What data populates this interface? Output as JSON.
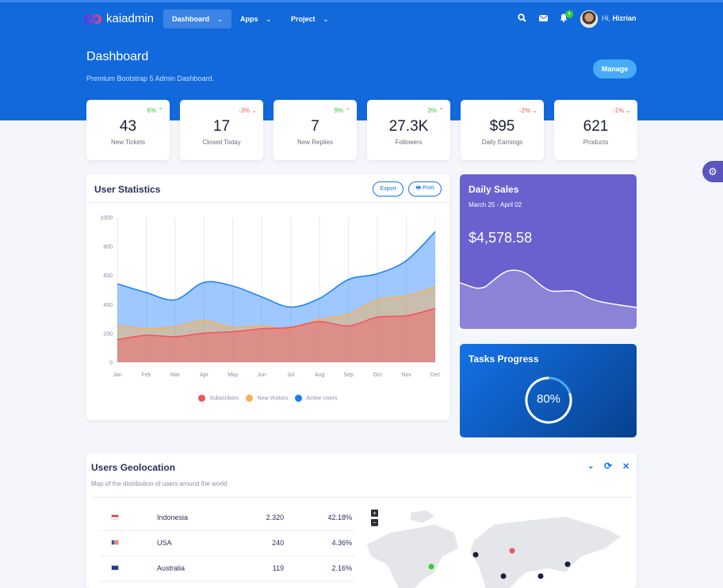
{
  "brand": {
    "name": "kaiadmin"
  },
  "nav": [
    {
      "label": "Dashboard",
      "active": true
    },
    {
      "label": "Apps"
    },
    {
      "label": "Project"
    }
  ],
  "topbar": {
    "icons": [
      "search-icon",
      "envelope-icon",
      "bell-icon"
    ],
    "notification_count": "4",
    "greeting": "Hi,",
    "user": "Hizrian"
  },
  "page": {
    "title": "Dashboard",
    "subtitle": "Premium Bootstrap 5 Admin Dashboard.",
    "manage_label": "Manage"
  },
  "stats": [
    {
      "value": "43",
      "label": "New Tickets",
      "change": "6%",
      "trend": "up"
    },
    {
      "value": "17",
      "label": "Closed Today",
      "change": "-3%",
      "trend": "down"
    },
    {
      "value": "7",
      "label": "New Replies",
      "change": "9%",
      "trend": "up"
    },
    {
      "value": "27.3K",
      "label": "Followers",
      "change": "3%",
      "trend": "up"
    },
    {
      "value": "$95",
      "label": "Daily Earnings",
      "change": "-2%",
      "trend": "down"
    },
    {
      "value": "621",
      "label": "Products",
      "change": "-1%",
      "trend": "down"
    }
  ],
  "user_stats": {
    "title": "User Statistics",
    "export_label": "Export",
    "print_label": "Print"
  },
  "chart_data": {
    "type": "area",
    "categories": [
      "Jan",
      "Feb",
      "Mar",
      "Apr",
      "May",
      "Jun",
      "Jul",
      "Aug",
      "Sep",
      "Oct",
      "Nov",
      "Dec"
    ],
    "ylim": [
      0,
      1000
    ],
    "yticks": [
      "0",
      "200",
      "400",
      "600",
      "800",
      "1000"
    ],
    "grid": "vertical",
    "legend_position": "bottom",
    "series": [
      {
        "name": "Subscribers",
        "color": "#f3545d",
        "values": [
          155,
          185,
          175,
          200,
          210,
          230,
          240,
          280,
          250,
          310,
          320,
          370
        ]
      },
      {
        "name": "New Visitors",
        "color": "#fdaf4b",
        "values": [
          255,
          230,
          245,
          285,
          240,
          250,
          230,
          295,
          330,
          430,
          455,
          520
        ]
      },
      {
        "name": "Active Users",
        "color": "#177dff",
        "values": [
          540,
          480,
          430,
          550,
          525,
          450,
          380,
          440,
          570,
          610,
          700,
          900
        ]
      }
    ]
  },
  "daily_sales": {
    "title": "Daily Sales",
    "range": "March 25 - April 02",
    "amount": "$4,578.58"
  },
  "tasks": {
    "title": "Tasks Progress",
    "percent": 80,
    "label": "80%"
  },
  "geo": {
    "title": "Users Geolocation",
    "subtitle": "Map of the distribution of users around the world",
    "rows": [
      {
        "flag": "indonesia-flag",
        "country": "Indonesia",
        "users": "2.320",
        "percent": "42.18%"
      },
      {
        "flag": "usa-flag",
        "country": "USA",
        "users": "240",
        "percent": "4.36%"
      },
      {
        "flag": "australia-flag",
        "country": "Australia",
        "users": "119",
        "percent": "2.16%"
      }
    ]
  },
  "colors": {
    "primary": "#1572e8",
    "secondary": "#6861ce",
    "success": "#31ce36",
    "danger": "#f25961"
  }
}
